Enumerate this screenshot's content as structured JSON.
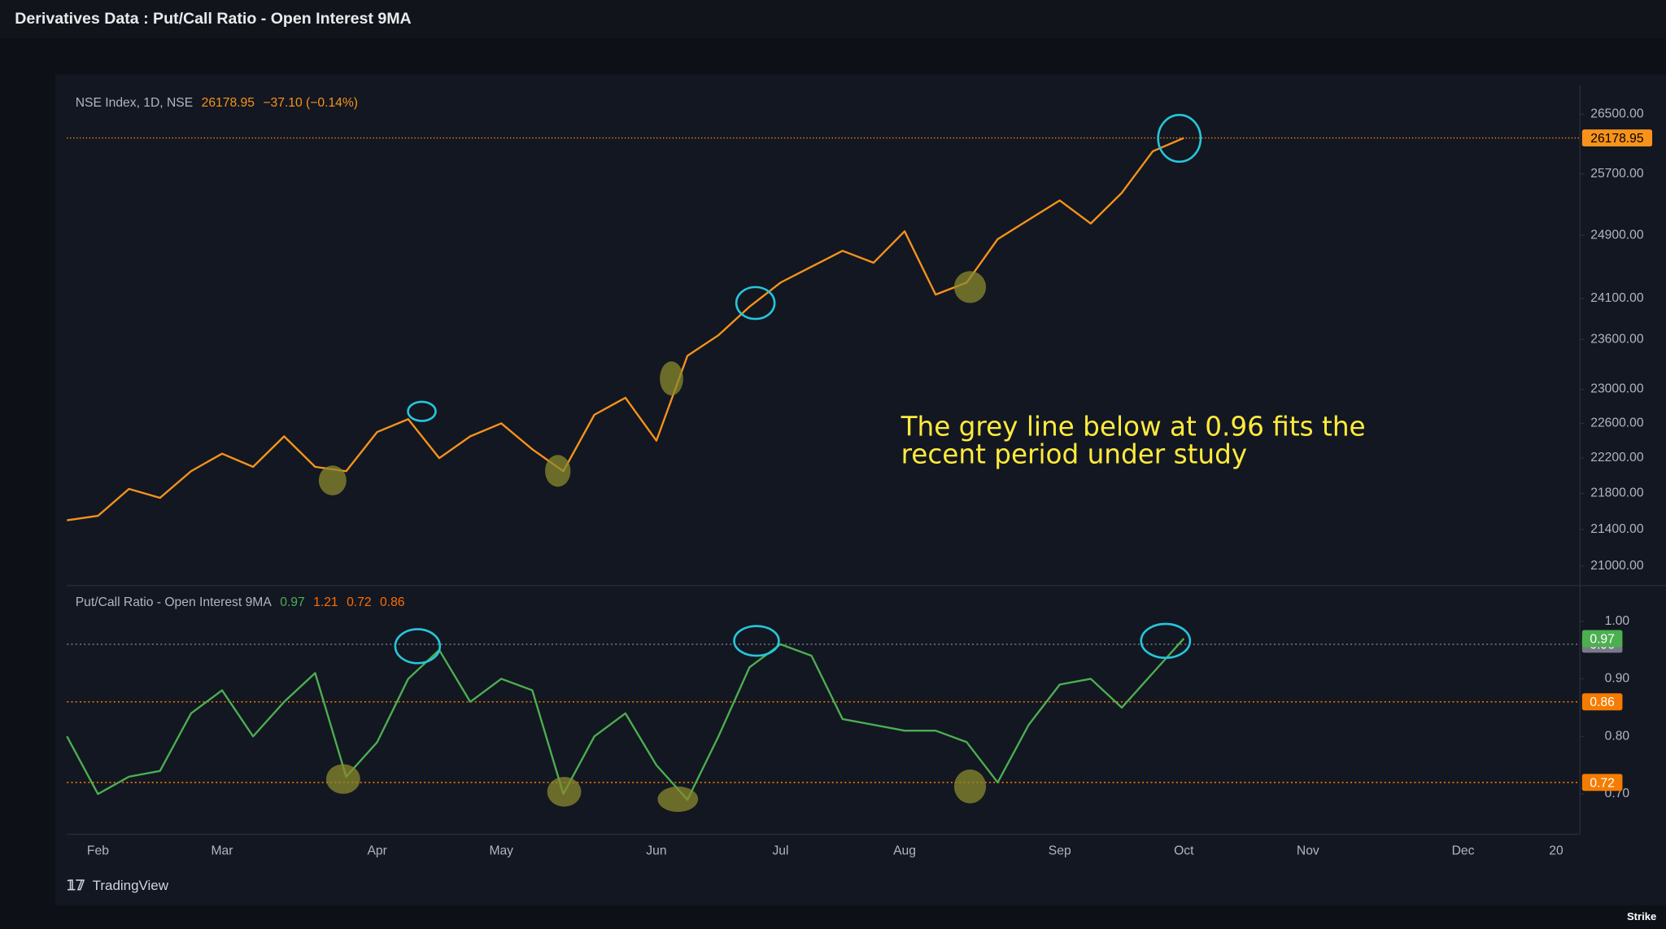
{
  "page_title": "Derivatives Data : Put/Call Ratio - Open Interest 9MA",
  "chart_data": [
    {
      "type": "line",
      "header": "NSE Index, 1D, NSE",
      "change": "−37.10 (−0.14%)",
      "log_scale": true,
      "series": [
        {
          "color": "#f7931a",
          "values": [
            21500,
            21550,
            21850,
            21750,
            22050,
            22250,
            22100,
            22450,
            22100,
            22050,
            22500,
            22650,
            22200,
            22450,
            22600,
            22300,
            22050,
            22700,
            22900,
            22400,
            23400,
            23650,
            24000,
            24300,
            24500,
            24700,
            24550,
            24950,
            24150,
            24300,
            24850,
            25100,
            25350,
            25050,
            25450,
            26000,
            26178.95,
            null,
            null,
            null,
            null,
            null,
            null,
            null,
            null,
            null,
            null,
            null,
            null
          ]
        }
      ],
      "ylim": [
        20800,
        26900
      ],
      "yticks": [
        {
          "value": 21000,
          "label": "21000.00"
        },
        {
          "value": 21400,
          "label": "21400.00"
        },
        {
          "value": 21800,
          "label": "21800.00"
        },
        {
          "value": 22200,
          "label": "22200.00"
        },
        {
          "value": 22600,
          "label": "22600.00"
        },
        {
          "value": 23000,
          "label": "23000.00"
        },
        {
          "value": 23600,
          "label": "23600.00"
        },
        {
          "value": 24100,
          "label": "24100.00"
        },
        {
          "value": 24900,
          "label": "24900.00"
        },
        {
          "value": 25700,
          "label": "25700.00"
        },
        {
          "value": 26500,
          "label": "26500.00"
        }
      ],
      "annotation": [
        "The grey line below at 0.96 fits the",
        "recent period under study"
      ]
    },
    {
      "type": "line",
      "header": "Put/Call Ratio - Open Interest 9MA",
      "legend_values": [
        {
          "value": 0.97,
          "color": "#4caf50"
        },
        {
          "value": 1.21,
          "color": "#ff6d00"
        },
        {
          "value": 0.72,
          "color": "#ff6d00"
        },
        {
          "value": 0.86,
          "color": "#ff6d00"
        }
      ],
      "categories": [
        null,
        "Feb",
        null,
        null,
        null,
        "Mar",
        null,
        null,
        null,
        null,
        "Apr",
        null,
        null,
        null,
        "May",
        null,
        null,
        null,
        null,
        "Jun",
        null,
        null,
        null,
        "Jul",
        null,
        null,
        null,
        "Aug",
        null,
        null,
        null,
        null,
        "Sep",
        null,
        null,
        null,
        "Oct",
        null,
        null,
        null,
        "Nov",
        null,
        null,
        null,
        null,
        "Dec",
        null,
        null,
        "20"
      ],
      "series": [
        {
          "color": "#4caf50",
          "values": [
            0.8,
            0.7,
            0.73,
            0.74,
            0.84,
            0.88,
            0.8,
            0.86,
            0.91,
            0.73,
            0.79,
            0.9,
            0.95,
            0.86,
            0.9,
            0.88,
            0.7,
            0.8,
            0.84,
            0.75,
            0.69,
            0.8,
            0.92,
            0.96,
            0.94,
            0.83,
            0.82,
            0.81,
            0.81,
            0.79,
            0.72,
            0.82,
            0.89,
            0.9,
            0.85,
            0.91,
            0.97,
            null,
            null,
            null,
            null,
            null,
            null,
            null,
            null,
            null,
            null,
            null,
            null
          ]
        }
      ],
      "ylim": [
        0.63,
        1.06
      ],
      "yticks": [
        {
          "value": 0.7,
          "label": "0.70"
        },
        {
          "value": 0.8,
          "label": "0.80"
        },
        {
          "value": 0.9,
          "label": "0.90"
        },
        {
          "value": 1.0,
          "label": "1.00"
        }
      ],
      "levels": [
        {
          "value": 0.96,
          "color": "#787b86"
        },
        {
          "value": 0.86,
          "color": "#f57c00"
        },
        {
          "value": 0.72,
          "color": "#f57c00"
        }
      ]
    }
  ],
  "footer": {
    "brand": "TradingView",
    "watermark": "Strike"
  }
}
